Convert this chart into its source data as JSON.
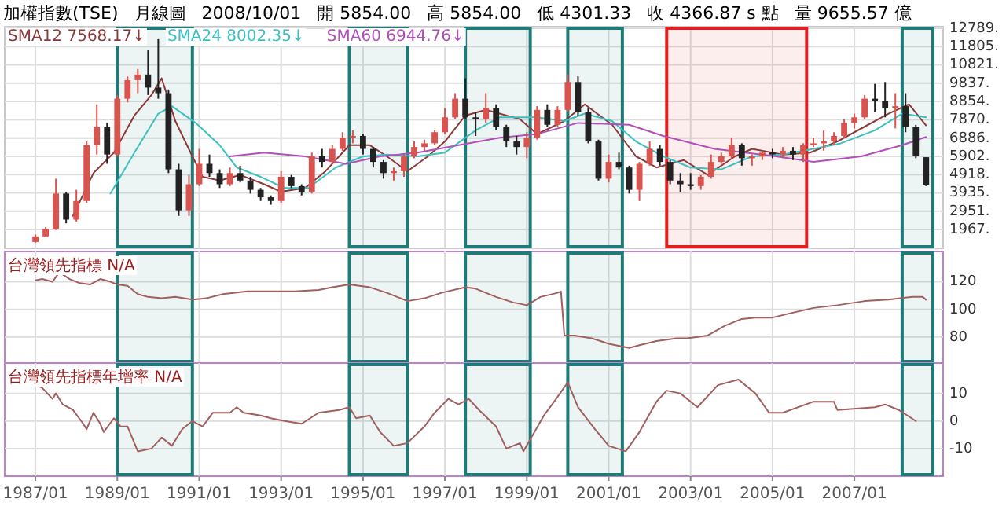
{
  "chart_data": [
    {
      "type": "candlestick",
      "title": "加權指數(TSE)",
      "annotations": [
        "月線圖",
        "2008/10/01",
        "開 5854.00",
        "高 5854.00",
        "低 4301.33",
        "收 4366.87 s 點",
        "量 9655.57 億"
      ],
      "x": [
        "1987-01",
        "1987-04",
        "1987-07",
        "1987-10",
        "1988-01",
        "1988-04",
        "1988-07",
        "1988-10",
        "1989-01",
        "1989-04",
        "1989-07",
        "1989-10",
        "1990-01",
        "1990-04",
        "1990-07",
        "1990-10",
        "1991-01",
        "1991-04",
        "1991-07",
        "1991-10",
        "1992-01",
        "1992-04",
        "1992-07",
        "1992-10",
        "1993-01",
        "1993-04",
        "1993-07",
        "1993-10",
        "1994-01",
        "1994-04",
        "1994-07",
        "1994-10",
        "1995-01",
        "1995-04",
        "1995-07",
        "1995-10",
        "1996-01",
        "1996-04",
        "1996-07",
        "1996-10",
        "1997-01",
        "1997-04",
        "1997-07",
        "1997-10",
        "1998-01",
        "1998-04",
        "1998-07",
        "1998-10",
        "1999-01",
        "1999-04",
        "1999-07",
        "1999-10",
        "2000-01",
        "2000-04",
        "2000-07",
        "2000-10",
        "2001-01",
        "2001-04",
        "2001-07",
        "2001-10",
        "2002-01",
        "2002-04",
        "2002-07",
        "2002-10",
        "2003-01",
        "2003-04",
        "2003-07",
        "2003-10",
        "2004-01",
        "2004-04",
        "2004-07",
        "2004-10",
        "2005-01",
        "2005-04",
        "2005-07",
        "2005-10",
        "2006-01",
        "2006-04",
        "2006-07",
        "2006-10",
        "2007-01",
        "2007-04",
        "2007-07",
        "2007-10",
        "2008-01",
        "2008-04",
        "2008-07",
        "2008-10"
      ],
      "ohlc": [
        [
          1300,
          1700,
          1250,
          1600
        ],
        [
          1600,
          2100,
          1550,
          2000
        ],
        [
          2000,
          4700,
          1950,
          3900
        ],
        [
          3900,
          4000,
          2300,
          2500
        ],
        [
          2500,
          4100,
          2400,
          3500
        ],
        [
          3500,
          6700,
          3400,
          6500
        ],
        [
          6500,
          8700,
          6000,
          7500
        ],
        [
          7500,
          7700,
          5500,
          6000
        ],
        [
          6000,
          9200,
          5900,
          9000
        ],
        [
          9000,
          10200,
          8800,
          10000
        ],
        [
          10000,
          10600,
          9300,
          10300
        ],
        [
          10300,
          11600,
          9200,
          9600
        ],
        [
          9600,
          12200,
          9000,
          9300
        ],
        [
          9300,
          9500,
          5000,
          5200
        ],
        [
          5200,
          5500,
          2700,
          3000
        ],
        [
          3000,
          4900,
          2700,
          4400
        ],
        [
          4400,
          6300,
          4300,
          5500
        ],
        [
          5500,
          6000,
          4800,
          5000
        ],
        [
          5000,
          5200,
          4200,
          4400
        ],
        [
          4400,
          5300,
          4300,
          5000
        ],
        [
          5000,
          5400,
          4500,
          4600
        ],
        [
          4600,
          4800,
          3900,
          4100
        ],
        [
          4100,
          4200,
          3500,
          3700
        ],
        [
          3700,
          3800,
          3300,
          3500
        ],
        [
          3500,
          5100,
          3400,
          4800
        ],
        [
          4800,
          4900,
          4200,
          4300
        ],
        [
          4300,
          4400,
          3800,
          4000
        ],
        [
          4000,
          6100,
          3900,
          5900
        ],
        [
          5900,
          6300,
          5300,
          5600
        ],
        [
          5600,
          6500,
          5500,
          6300
        ],
        [
          6300,
          7200,
          6200,
          6900
        ],
        [
          6900,
          7300,
          6600,
          7000
        ],
        [
          7000,
          7100,
          6000,
          6300
        ],
        [
          6300,
          6400,
          5300,
          5600
        ],
        [
          5600,
          5700,
          4700,
          5000
        ],
        [
          5000,
          5300,
          4600,
          5100
        ],
        [
          5100,
          6000,
          4800,
          5900
        ],
        [
          5900,
          6700,
          5800,
          6400
        ],
        [
          6400,
          6800,
          6200,
          6600
        ],
        [
          6600,
          7300,
          6500,
          7200
        ],
        [
          7200,
          8500,
          7100,
          8000
        ],
        [
          8000,
          9300,
          7900,
          9000
        ],
        [
          9000,
          10100,
          7900,
          8000
        ],
        [
          8000,
          8300,
          7000,
          7900
        ],
        [
          7900,
          9300,
          7700,
          8500
        ],
        [
          8500,
          8700,
          7300,
          7500
        ],
        [
          7500,
          7600,
          6400,
          6700
        ],
        [
          6700,
          7000,
          6000,
          6400
        ],
        [
          6400,
          7200,
          5800,
          6900
        ],
        [
          6900,
          8600,
          6800,
          8400
        ],
        [
          8400,
          8700,
          7500,
          7600
        ],
        [
          7600,
          8600,
          7500,
          8400
        ],
        [
          8400,
          10300,
          8300,
          9900
        ],
        [
          9900,
          10200,
          8100,
          8300
        ],
        [
          8300,
          8500,
          6600,
          6700
        ],
        [
          6700,
          6800,
          4600,
          4700
        ],
        [
          4700,
          6000,
          4500,
          5600
        ],
        [
          5600,
          6100,
          5200,
          5300
        ],
        [
          5300,
          5400,
          3900,
          4100
        ],
        [
          4100,
          5600,
          3500,
          5500
        ],
        [
          5500,
          6700,
          5400,
          6300
        ],
        [
          6300,
          6500,
          5400,
          5600
        ],
        [
          5600,
          5700,
          4400,
          4600
        ],
        [
          4600,
          5000,
          4000,
          4400
        ],
        [
          4400,
          5000,
          4100,
          4300
        ],
        [
          4300,
          4900,
          4100,
          4800
        ],
        [
          4800,
          6000,
          4700,
          5600
        ],
        [
          5600,
          6100,
          5500,
          5900
        ],
        [
          5900,
          6900,
          5800,
          6500
        ],
        [
          6500,
          6600,
          5400,
          5800
        ],
        [
          5800,
          6000,
          5400,
          5900
        ],
        [
          5900,
          6200,
          5700,
          6100
        ],
        [
          6100,
          6300,
          5800,
          6000
        ],
        [
          6000,
          6400,
          5800,
          6200
        ],
        [
          6200,
          6400,
          5700,
          6000
        ],
        [
          6000,
          6600,
          5600,
          6500
        ],
        [
          6500,
          6900,
          6400,
          6600
        ],
        [
          6600,
          7300,
          6200,
          6700
        ],
        [
          6700,
          7200,
          6500,
          7000
        ],
        [
          7000,
          7900,
          6900,
          7700
        ],
        [
          7700,
          8200,
          7400,
          8000
        ],
        [
          8000,
          9200,
          7900,
          9000
        ],
        [
          9000,
          9800,
          8300,
          8900
        ],
        [
          8900,
          9900,
          8000,
          8500
        ],
        [
          8500,
          9300,
          7400,
          8600
        ],
        [
          8600,
          9300,
          7200,
          7500
        ],
        [
          7500,
          7600,
          5800,
          5900
        ],
        [
          5854,
          5854,
          4301.33,
          4366.87
        ]
      ],
      "series": [
        {
          "name": "SMA12 7568.17↓",
          "type": "line",
          "color": "#8b3a3a",
          "x": [
            "1987-12",
            "1988-06",
            "1988-12",
            "1989-06",
            "1989-11",
            "1990-02",
            "1990-06",
            "1990-11",
            "1991-02",
            "1991-07",
            "1992-01",
            "1992-08",
            "1993-01",
            "1993-08",
            "1994-02",
            "1994-09",
            "1995-03",
            "1995-08",
            "1996-02",
            "1996-08",
            "1997-01",
            "1997-07",
            "1998-01",
            "1998-05",
            "1998-11",
            "1999-04",
            "1999-12",
            "2000-06",
            "2001-02",
            "2001-09",
            "2002-03",
            "2002-11",
            "2003-06",
            "2004-02",
            "2004-07",
            "2005-04",
            "2005-12",
            "2006-08",
            "2007-03",
            "2007-11",
            "2008-05",
            "2008-10"
          ],
          "values": [
            2700,
            5000,
            6100,
            8100,
            9200,
            10100,
            7800,
            5900,
            4800,
            4600,
            4900,
            4400,
            4000,
            4200,
            5100,
            6500,
            6500,
            5900,
            5100,
            5900,
            6700,
            8100,
            8400,
            8200,
            7900,
            7100,
            7800,
            8700,
            7600,
            5900,
            5300,
            5700,
            4900,
            5900,
            6300,
            6000,
            6100,
            6700,
            7400,
            8200,
            8700,
            7568.17
          ]
        },
        {
          "name": "SMA24 8002.35↓",
          "type": "line",
          "color": "#3cc0c0",
          "x": [
            "1988-11",
            "1989-06",
            "1990-01",
            "1990-05",
            "1990-12",
            "1991-07",
            "1991-12",
            "1992-07",
            "1993-02",
            "1993-09",
            "1994-05",
            "1995-01",
            "1995-08",
            "1996-05",
            "1997-01",
            "1997-10",
            "1998-05",
            "1999-04",
            "1999-12",
            "2000-06",
            "2001-02",
            "2001-09",
            "2002-05",
            "2003-01",
            "2003-10",
            "2004-07",
            "2005-04",
            "2006-01",
            "2006-09",
            "2007-07",
            "2008-03",
            "2008-10"
          ],
          "values": [
            3900,
            6100,
            8200,
            8600,
            7700,
            6500,
            5300,
            4800,
            4200,
            4200,
            5300,
            5900,
            6000,
            5900,
            6100,
            7300,
            8000,
            8000,
            7800,
            8200,
            7800,
            6700,
            5900,
            5300,
            5200,
            5900,
            6000,
            6300,
            6600,
            7300,
            8200,
            8002.35
          ]
        },
        {
          "name": "SMA60 6944.76↓",
          "type": "line",
          "color": "#b050b8",
          "x": [
            "1991-10",
            "1992-08",
            "1993-08",
            "1994-08",
            "1995-06",
            "1996-05",
            "1997-05",
            "1998-05",
            "1999-04",
            "2000-04",
            "2001-07",
            "2002-05",
            "2003-08",
            "2005-02",
            "2006-01",
            "2007-03",
            "2008-03",
            "2008-10"
          ],
          "values": [
            5900,
            6100,
            5900,
            5500,
            5900,
            6100,
            6500,
            6900,
            7100,
            7700,
            7600,
            7000,
            6300,
            5900,
            5600,
            5900,
            6500,
            6944.76
          ]
        }
      ],
      "legend": "top left",
      "xlim": [
        "1986-04",
        "2009-03"
      ],
      "xticks": [
        {
          "value": "1987-01",
          "label": null
        },
        {
          "value": "1989-01",
          "label": null
        },
        {
          "value": "1991-01",
          "label": null
        },
        {
          "value": "1993-01",
          "label": null
        },
        {
          "value": "1995-01",
          "label": null
        },
        {
          "value": "1997-01",
          "label": null
        },
        {
          "value": "1999-01",
          "label": null
        },
        {
          "value": "2001-01",
          "label": null
        },
        {
          "value": "2003-01",
          "label": null
        },
        {
          "value": "2005-01",
          "label": null
        },
        {
          "value": "2007-01",
          "label": null
        }
      ],
      "ylim": [
        958,
        12870
      ],
      "yticks": [
        {
          "value": 12789,
          "label": "12789."
        },
        {
          "value": 11805,
          "label": "11805."
        },
        {
          "value": 10821,
          "label": "10821."
        },
        {
          "value": 9837,
          "label": "9837."
        },
        {
          "value": 8854,
          "label": "8854."
        },
        {
          "value": 7870,
          "label": "7870."
        },
        {
          "value": 6886,
          "label": "6886."
        },
        {
          "value": 5902,
          "label": "5902."
        },
        {
          "value": 4918,
          "label": "4918."
        },
        {
          "value": 3935,
          "label": "3935."
        },
        {
          "value": 2951,
          "label": "2951."
        },
        {
          "value": 1967,
          "label": "1967."
        }
      ],
      "tick_labels": "y",
      "grid": true,
      "bands": [
        {
          "axis": "x",
          "from": "1989-01",
          "to": "1990-11",
          "color": "#1f7a78"
        },
        {
          "axis": "x",
          "from": "1994-09",
          "to": "1996-02",
          "color": "#1f7a78"
        },
        {
          "axis": "x",
          "from": "1997-07",
          "to": "1999-02",
          "color": "#1f7a78"
        },
        {
          "axis": "x",
          "from": "2000-01",
          "to": "2001-05",
          "color": "#1f7a78"
        },
        {
          "axis": "x",
          "from": "2002-06",
          "to": "2005-11",
          "color": "#e02020"
        },
        {
          "axis": "x",
          "from": "2008-03",
          "to": "2008-12",
          "color": "#1f7a78"
        }
      ]
    },
    {
      "type": "line",
      "title": "台灣領先指標 N/A",
      "series": [
        {
          "color": "#a06060",
          "x": [
            "1987-01",
            "1987-03",
            "1987-06",
            "1987-08",
            "1987-11",
            "1988-02",
            "1988-05",
            "1988-08",
            "1988-11",
            "1989-01",
            "1989-04",
            "1989-07",
            "1989-10",
            "1990-02",
            "1990-06",
            "1990-11",
            "1991-03",
            "1991-08",
            "1992-03",
            "1992-10",
            "1993-05",
            "1993-12",
            "1994-04",
            "1994-09",
            "1995-03",
            "1995-08",
            "1996-02",
            "1996-07",
            "1996-12",
            "1997-07",
            "1997-10",
            "1998-04",
            "1998-09",
            "1999-01",
            "1999-05",
            "1999-10",
            "1999-11",
            "1999-12",
            "2000-03",
            "2000-08",
            "2001-01",
            "2001-07",
            "2001-10",
            "2002-03",
            "2002-09",
            "2002-12",
            "2003-06",
            "2003-11",
            "2004-04",
            "2004-08",
            "2005-01",
            "2005-06",
            "2006-01",
            "2006-08",
            "2007-04",
            "2007-11",
            "2008-06",
            "2008-09",
            "2008-10"
          ],
          "values": [
            121,
            122,
            120,
            127,
            122,
            119,
            118,
            122,
            120,
            118,
            117,
            111,
            109,
            108,
            109,
            107,
            108,
            111,
            113,
            113,
            113,
            114,
            116,
            118,
            116,
            112,
            106,
            108,
            112,
            116,
            115,
            109,
            105,
            103,
            109,
            112,
            113,
            81,
            81,
            79,
            75,
            72,
            74,
            77,
            79,
            79,
            81,
            88,
            93,
            94,
            94,
            97,
            101,
            103,
            106,
            107,
            109,
            109,
            107
          ]
        }
      ],
      "xlim": [
        "1986-04",
        "2009-03"
      ],
      "xticks": [
        {
          "value": "1987-01",
          "label": null
        },
        {
          "value": "1989-01",
          "label": null
        },
        {
          "value": "1991-01",
          "label": null
        },
        {
          "value": "1993-01",
          "label": null
        },
        {
          "value": "1995-01",
          "label": null
        },
        {
          "value": "1997-01",
          "label": null
        },
        {
          "value": "1999-01",
          "label": null
        },
        {
          "value": "2001-01",
          "label": null
        },
        {
          "value": "2003-01",
          "label": null
        },
        {
          "value": "2005-01",
          "label": null
        },
        {
          "value": "2007-01",
          "label": null
        }
      ],
      "ylim": [
        61,
        142
      ],
      "yticks": [
        80,
        100,
        120
      ],
      "tick_labels": "y",
      "grid": true,
      "bands": [
        {
          "axis": "x",
          "from": "1989-01",
          "to": "1990-11",
          "color": "#1f7a78"
        },
        {
          "axis": "x",
          "from": "1994-09",
          "to": "1996-02",
          "color": "#1f7a78"
        },
        {
          "axis": "x",
          "from": "1997-07",
          "to": "1999-02",
          "color": "#1f7a78"
        },
        {
          "axis": "x",
          "from": "2000-01",
          "to": "2001-05",
          "color": "#1f7a78"
        },
        {
          "axis": "x",
          "from": "2008-03",
          "to": "2008-12",
          "color": "#1f7a78"
        }
      ]
    },
    {
      "type": "line",
      "title": "台灣領先指標年增率 N/A",
      "series": [
        {
          "color": "#a06060",
          "x": [
            "1987-01",
            "1987-03",
            "1987-06",
            "1987-07",
            "1987-09",
            "1987-12",
            "1988-03",
            "1988-04",
            "1988-06",
            "1988-08",
            "1988-09",
            "1988-12",
            "1989-02",
            "1989-04",
            "1989-07",
            "1989-11",
            "1990-02",
            "1990-05",
            "1990-08",
            "1990-11",
            "1991-02",
            "1991-05",
            "1991-10",
            "1991-12",
            "1992-02",
            "1992-07",
            "1992-10",
            "1993-02",
            "1993-07",
            "1993-12",
            "1994-06",
            "1994-09",
            "1994-11",
            "1995-03",
            "1995-06",
            "1995-10",
            "1996-02",
            "1996-07",
            "1996-10",
            "1997-02",
            "1997-05",
            "1997-08",
            "1997-11",
            "1998-04",
            "1998-07",
            "1998-11",
            "1998-12",
            "1999-06",
            "1999-09",
            "2000-01",
            "2000-04",
            "2000-09",
            "2001-01",
            "2001-06",
            "2001-10",
            "2002-03",
            "2002-06",
            "2002-10",
            "2003-03",
            "2003-09",
            "2004-03",
            "2004-08",
            "2004-12",
            "2005-04",
            "2006-01",
            "2006-07",
            "2006-08",
            "2007-07",
            "2007-10",
            "2008-02",
            "2008-07"
          ],
          "values": [
            13,
            12,
            8,
            10,
            6,
            4,
            -1,
            -3,
            3,
            -1,
            -4,
            1,
            -2,
            -2,
            -11,
            -10,
            -6,
            -9,
            -3,
            0,
            -2,
            3,
            3,
            5,
            3,
            2,
            1,
            0,
            -1,
            3,
            4,
            5,
            1,
            2,
            -4,
            -9,
            -8,
            -2,
            3,
            8,
            6,
            8,
            4,
            -2,
            -10,
            -8,
            -11,
            2,
            7,
            14,
            5,
            -3,
            -9,
            -11,
            -4,
            7,
            11,
            10,
            5,
            13,
            15,
            10,
            3,
            3,
            7,
            7,
            4,
            5,
            6,
            4,
            0
          ]
        }
      ],
      "xlim": [
        "1986-04",
        "2009-03"
      ],
      "xticks": [
        {
          "value": "1987-01",
          "label": "1987/01"
        },
        {
          "value": "1989-01",
          "label": "1989/01"
        },
        {
          "value": "1991-01",
          "label": "1991/01"
        },
        {
          "value": "1993-01",
          "label": "1993/01"
        },
        {
          "value": "1995-01",
          "label": "1995/01"
        },
        {
          "value": "1997-01",
          "label": "1997/01"
        },
        {
          "value": "1999-01",
          "label": "1999/01"
        },
        {
          "value": "2001-01",
          "label": "2001/01"
        },
        {
          "value": "2003-01",
          "label": "2003/01"
        },
        {
          "value": "2005-01",
          "label": "2005/01"
        },
        {
          "value": "2007-01",
          "label": "2007/01"
        }
      ],
      "ylim": [
        -20,
        21
      ],
      "yticks": [
        -10,
        0,
        10
      ],
      "grid": true,
      "bands": [
        {
          "axis": "x",
          "from": "1989-01",
          "to": "1990-11",
          "color": "#1f7a78"
        },
        {
          "axis": "x",
          "from": "1994-09",
          "to": "1996-02",
          "color": "#1f7a78"
        },
        {
          "axis": "x",
          "from": "1997-07",
          "to": "1999-02",
          "color": "#1f7a78"
        },
        {
          "axis": "x",
          "from": "2000-01",
          "to": "2001-05",
          "color": "#1f7a78"
        },
        {
          "axis": "x",
          "from": "2008-03",
          "to": "2008-12",
          "color": "#1f7a78"
        }
      ]
    }
  ]
}
